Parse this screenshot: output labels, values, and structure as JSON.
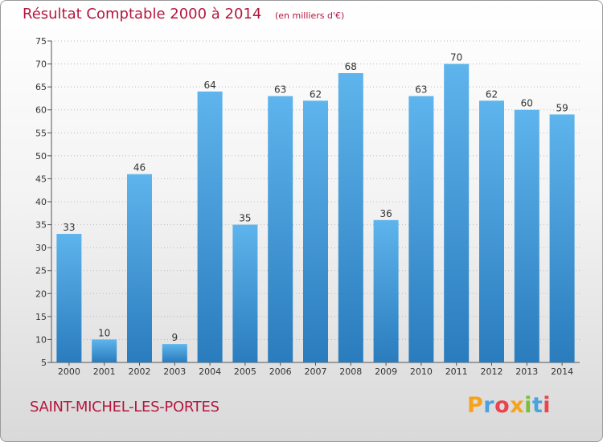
{
  "chart_data": {
    "type": "bar",
    "title": "Résultat Comptable 2000 à 2014",
    "subtitle": "(en milliers d'€)",
    "categories": [
      "2000",
      "2001",
      "2002",
      "2003",
      "2004",
      "2005",
      "2006",
      "2007",
      "2008",
      "2009",
      "2010",
      "2011",
      "2012",
      "2013",
      "2014"
    ],
    "values": [
      33,
      10,
      46,
      9,
      64,
      35,
      63,
      62,
      68,
      36,
      63,
      70,
      62,
      60,
      59
    ],
    "ylim": [
      5,
      75
    ],
    "yticks": [
      5,
      10,
      15,
      20,
      25,
      30,
      35,
      40,
      45,
      50,
      55,
      60,
      65,
      70,
      75
    ],
    "xlabel": "",
    "ylabel": "",
    "grid": "horizontal-dotted",
    "colors": {
      "bar_light": "#5eb4ec",
      "bar_dark": "#2a7cbd",
      "axis": "#555555",
      "grid": "#bbbbbb"
    }
  },
  "footer": {
    "place": "SAINT-MICHEL-LES-PORTES"
  },
  "logo": {
    "letters": [
      "P",
      "r",
      "o",
      "x",
      "i",
      "t",
      "i"
    ],
    "colors": [
      "#f7a21b",
      "#4aa3df",
      "#e8454f",
      "#f7a21b",
      "#7bbf3a",
      "#4aa3df",
      "#e8454f"
    ]
  }
}
